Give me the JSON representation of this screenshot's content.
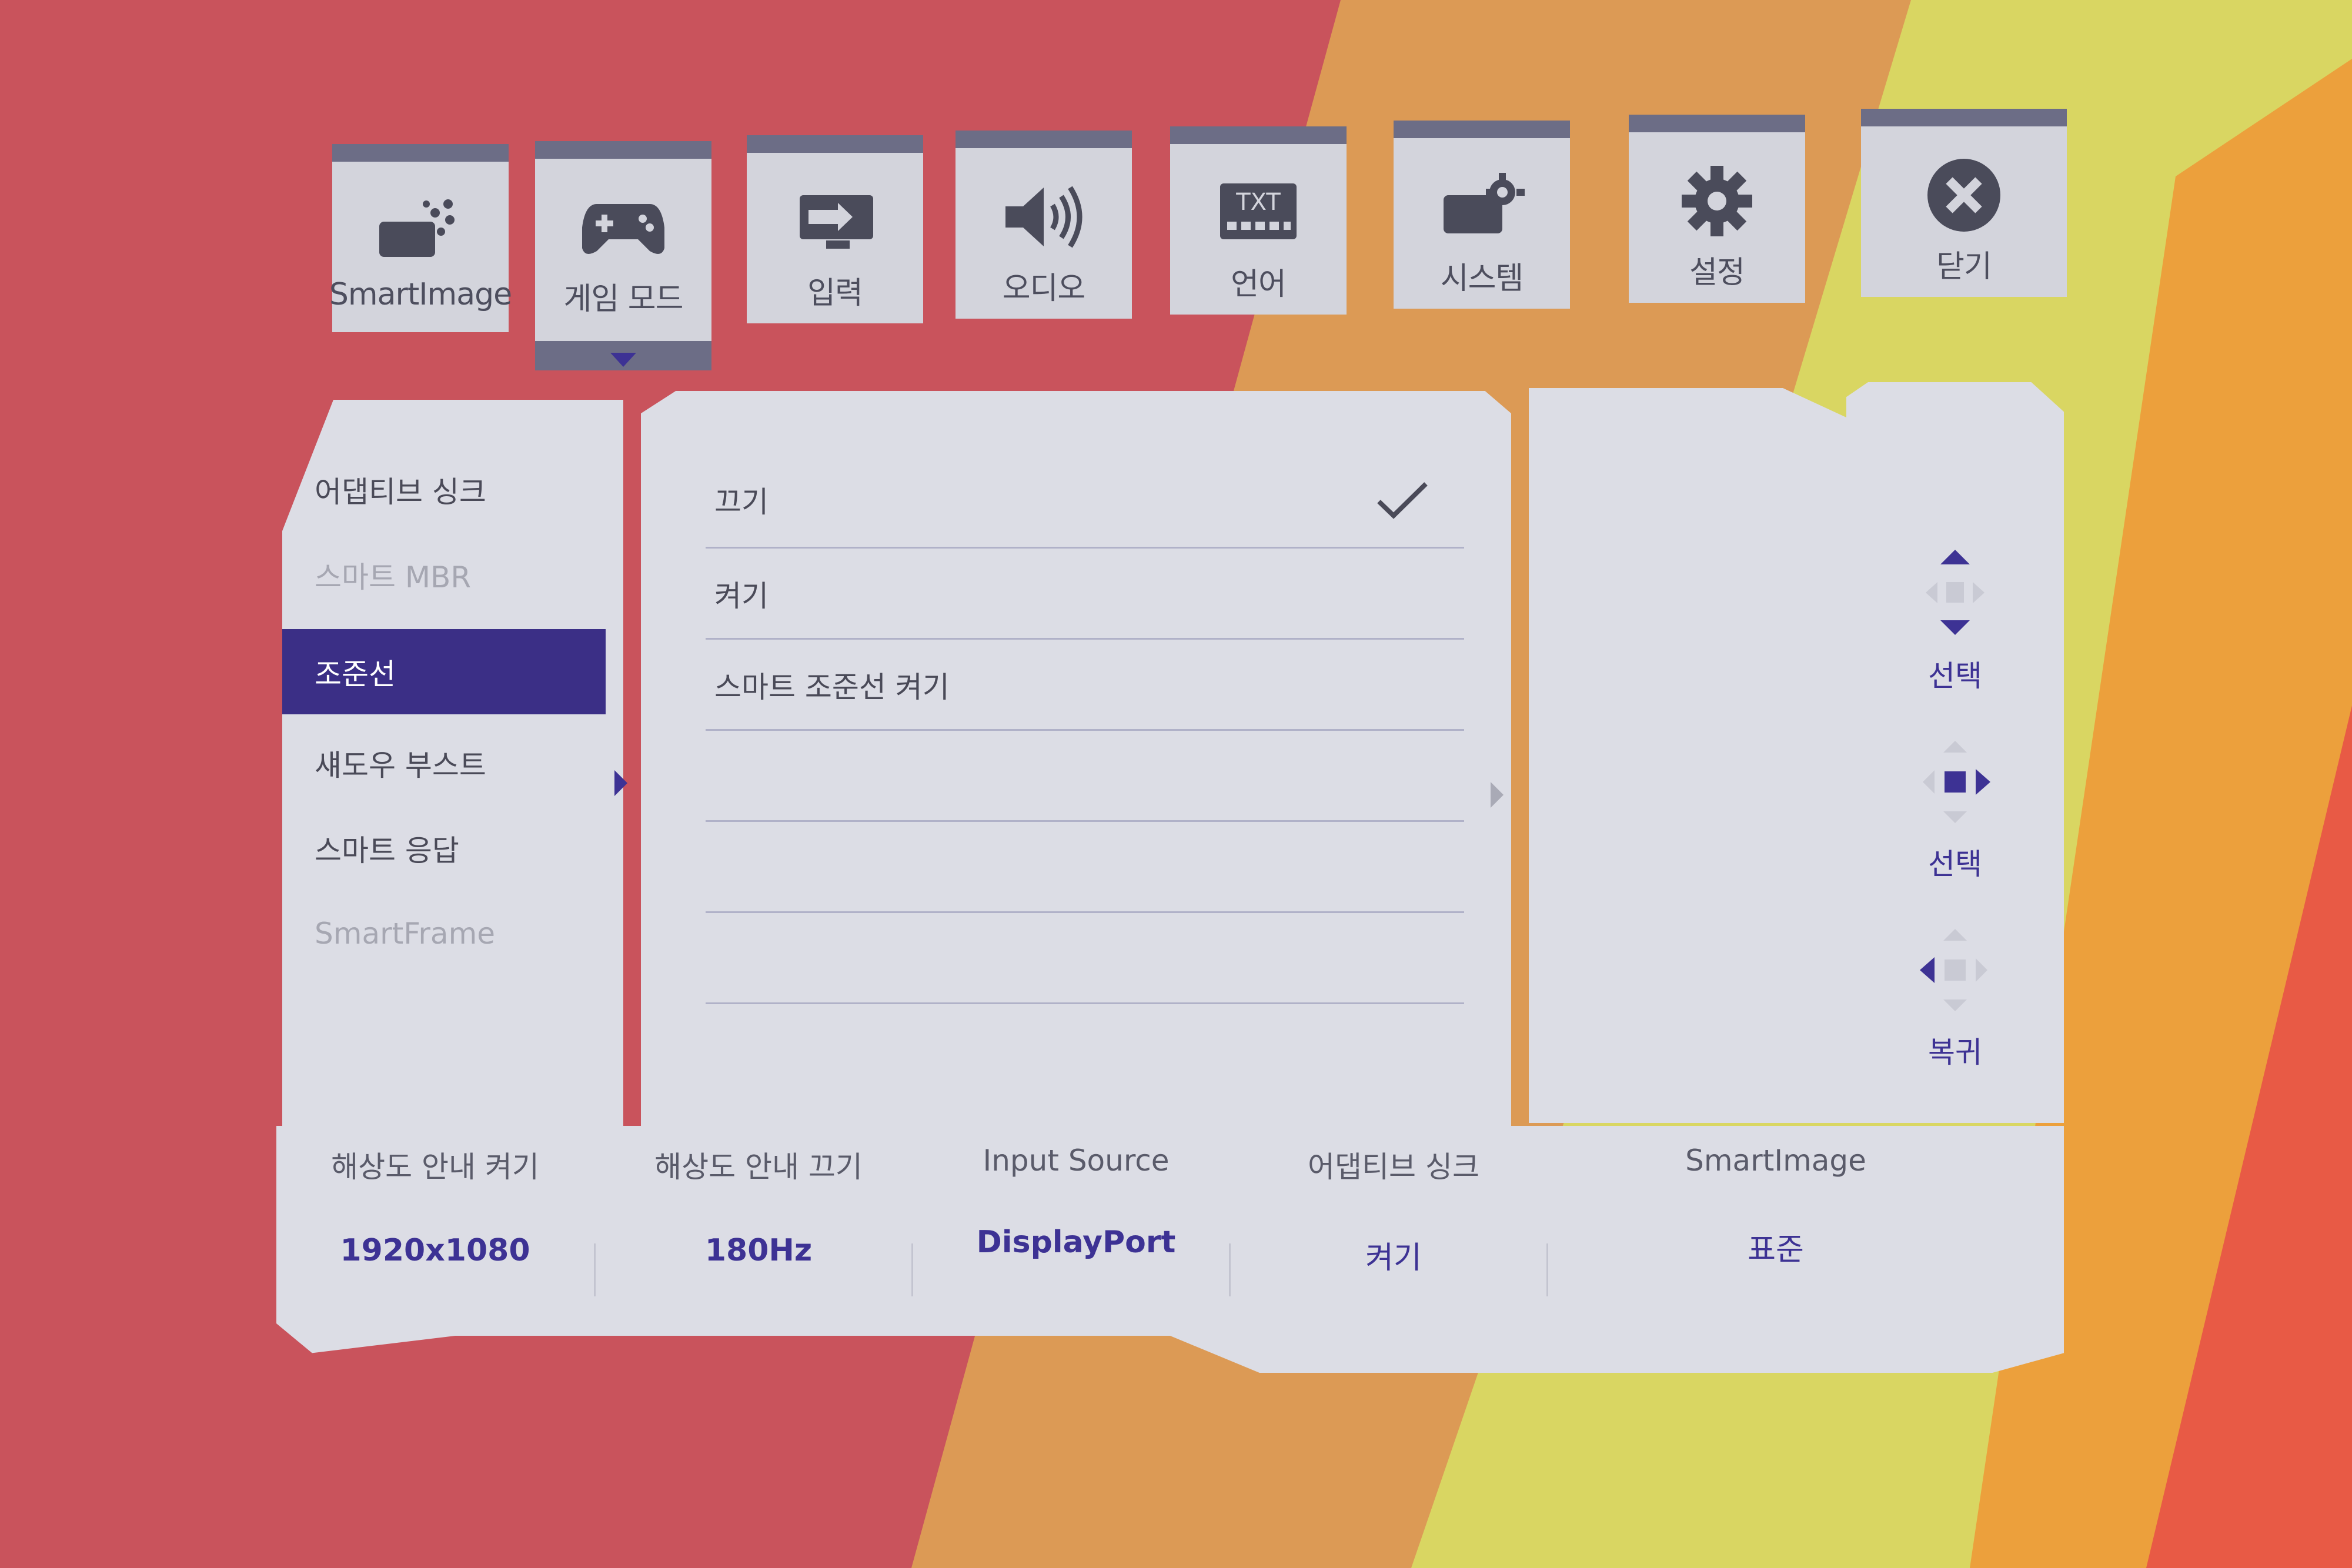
{
  "tabs": [
    {
      "label": "SmartImage",
      "icon": "smartimage-icon"
    },
    {
      "label": "게임 모드",
      "icon": "gamepad-icon"
    },
    {
      "label": "입력",
      "icon": "input-icon"
    },
    {
      "label": "오디오",
      "icon": "speaker-icon"
    },
    {
      "label": "언어",
      "icon": "language-icon",
      "icon_text": "TXT"
    },
    {
      "label": "시스템",
      "icon": "system-icon"
    },
    {
      "label": "설정",
      "icon": "gear-icon"
    },
    {
      "label": "닫기",
      "icon": "close-icon"
    }
  ],
  "left_menu": {
    "items": [
      {
        "label": "어댑티브 싱크",
        "state": "normal"
      },
      {
        "label": "스마트 MBR",
        "state": "disabled"
      },
      {
        "label": "조준선",
        "state": "selected"
      },
      {
        "label": "섀도우 부스트",
        "state": "normal"
      },
      {
        "label": "스마트 응답",
        "state": "normal"
      },
      {
        "label": "SmartFrame",
        "state": "disabled"
      }
    ]
  },
  "options": {
    "items": [
      {
        "label": "끄기",
        "checked": true
      },
      {
        "label": "켜기",
        "checked": false
      },
      {
        "label": "스마트 조준선 켜기",
        "checked": false
      }
    ]
  },
  "nav": {
    "select_up_down": "선택",
    "select_right": "선택",
    "back": "복귀"
  },
  "info_bar": [
    {
      "label": "해상도 안내 켜기",
      "value": "1920x1080"
    },
    {
      "label": "해상도 안내 끄기",
      "value": "180Hz"
    },
    {
      "label": "Input Source",
      "value": "DisplayPort"
    },
    {
      "label": "어댑티브 싱크",
      "value": "켜기"
    },
    {
      "label": "SmartImage",
      "value": "표준"
    }
  ],
  "colors": {
    "accent": "#3b2f86",
    "panel": "#dcdde5",
    "tab_border": "#6c6d86",
    "text": "#4a4a58"
  }
}
